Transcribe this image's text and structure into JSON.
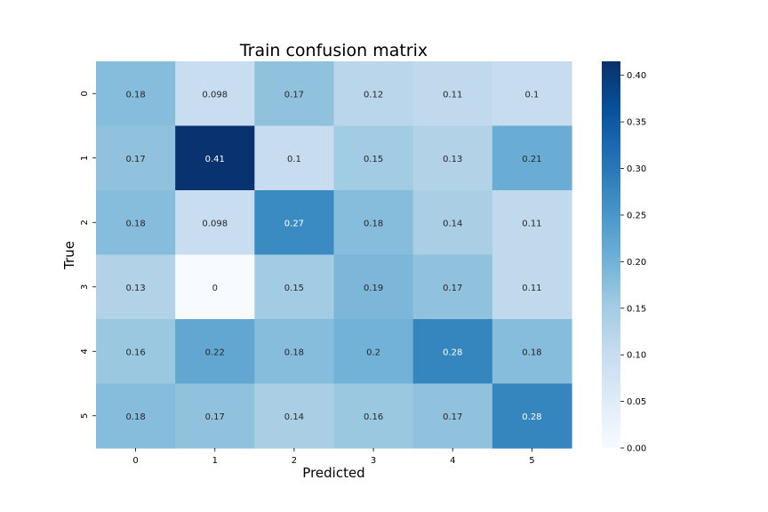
{
  "chart_data": {
    "type": "heatmap",
    "title": "Train confusion matrix",
    "xlabel": "Predicted",
    "ylabel": "True",
    "x_categories": [
      "0",
      "1",
      "2",
      "3",
      "4",
      "5"
    ],
    "y_categories": [
      "0",
      "1",
      "2",
      "3",
      "4",
      "5"
    ],
    "values": [
      [
        0.18,
        0.098,
        0.17,
        0.12,
        0.11,
        0.1
      ],
      [
        0.17,
        0.41,
        0.1,
        0.15,
        0.13,
        0.21
      ],
      [
        0.18,
        0.098,
        0.27,
        0.18,
        0.14,
        0.11
      ],
      [
        0.13,
        0,
        0.15,
        0.19,
        0.17,
        0.11
      ],
      [
        0.16,
        0.22,
        0.18,
        0.2,
        0.28,
        0.18
      ],
      [
        0.18,
        0.17,
        0.14,
        0.16,
        0.17,
        0.28
      ]
    ],
    "cell_labels": [
      [
        "0.18",
        "0.098",
        "0.17",
        "0.12",
        "0.11",
        "0.1"
      ],
      [
        "0.17",
        "0.41",
        "0.1",
        "0.15",
        "0.13",
        "0.21"
      ],
      [
        "0.18",
        "0.098",
        "0.27",
        "0.18",
        "0.14",
        "0.11"
      ],
      [
        "0.13",
        "0",
        "0.15",
        "0.19",
        "0.17",
        "0.11"
      ],
      [
        "0.16",
        "0.22",
        "0.18",
        "0.2",
        "0.28",
        "0.18"
      ],
      [
        "0.18",
        "0.17",
        "0.14",
        "0.16",
        "0.17",
        "0.28"
      ]
    ],
    "colormap": "Blues",
    "vmin": 0,
    "vmax": 0.415,
    "colorbar_ticks": [
      "0.00",
      "0.05",
      "0.10",
      "0.15",
      "0.20",
      "0.25",
      "0.30",
      "0.35",
      "0.40"
    ],
    "colorbar_tick_values": [
      0,
      0.05,
      0.1,
      0.15,
      0.2,
      0.25,
      0.3,
      0.35,
      0.4
    ],
    "annotation_dark_color": "#262626",
    "annotation_light_color": "#ffffff"
  }
}
